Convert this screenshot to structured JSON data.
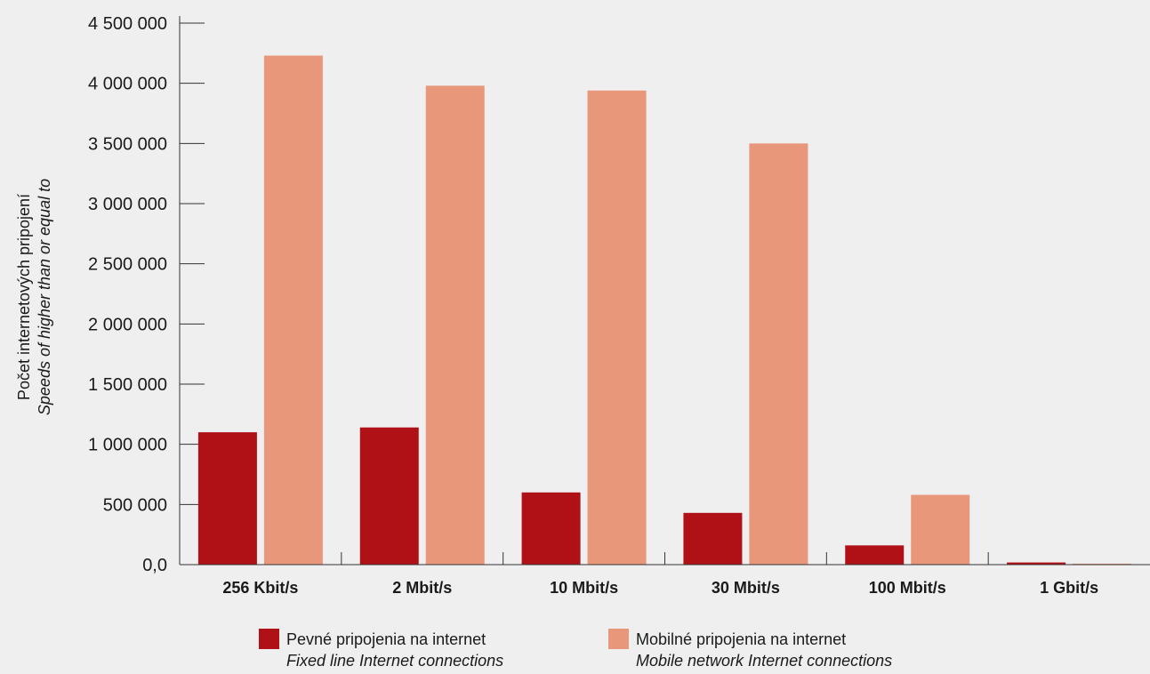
{
  "colors": {
    "background": "#efeff0",
    "fixed": "#b01117",
    "mobile": "#e8977a",
    "axis": "#333333"
  },
  "chart_data": {
    "type": "bar",
    "categories": [
      "256 Kbit/s",
      "2 Mbit/s",
      "10 Mbit/s",
      "30 Mbit/s",
      "100 Mbit/s",
      "1 Gbit/s"
    ],
    "series": [
      {
        "name": "Pevné pripojenia na internet",
        "name_en": "Fixed line Internet connections",
        "color": "#b01117",
        "values": [
          1100000,
          1140000,
          600000,
          430000,
          160000,
          18000
        ]
      },
      {
        "name": "Mobilné pripojenia na internet",
        "name_en": "Mobile network Internet connections",
        "color": "#e8977a",
        "values": [
          4230000,
          3980000,
          3940000,
          3500000,
          580000,
          8000
        ]
      }
    ],
    "yticks": [
      0,
      500000,
      1000000,
      1500000,
      2000000,
      2500000,
      3000000,
      3500000,
      4000000,
      4500000
    ],
    "ytick_labels": [
      "0,0",
      "500 000",
      "1 000 000",
      "1 500 000",
      "2 000 000",
      "2 500 000",
      "3 000 000",
      "3 500 000",
      "4 000 000",
      "4 500 000"
    ],
    "ylim": [
      0,
      4500000
    ],
    "ylabel": "Počet internetových pripojení",
    "ylabel_en": "Speeds of higher than or equal to",
    "xlabel": "",
    "title": "",
    "grid": false,
    "legend_position": "bottom"
  }
}
